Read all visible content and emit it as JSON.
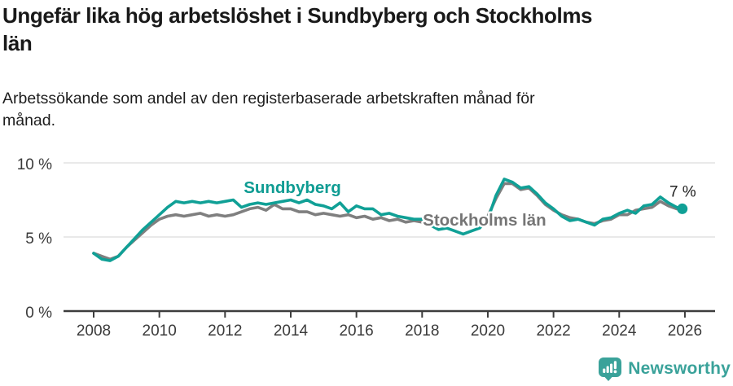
{
  "header": {
    "title": "Ungefär lika hög arbetslöshet i Sundbyberg och Stockholms\nlän",
    "subtitle": "Arbetssökande som andel av den registerbaserade arbetskraften månad för\nmånad."
  },
  "footer": {
    "brand": "Newsworthy",
    "brand_color": "#3aa29a",
    "logo_icon": "speech-bubble-bar-chart-icon"
  },
  "chart_data": {
    "type": "line",
    "title": "Ungefär lika hög arbetslöshet i Sundbyberg och Stockholms län",
    "subtitle": "Arbetssökande som andel av den registerbaserade arbetskraften månad för månad.",
    "xlabel": "",
    "ylabel": "",
    "xlim": [
      2007.1,
      2026.9
    ],
    "ylim": [
      0,
      10.5
    ],
    "grid": "horizontal-only",
    "gridline_color": "#e2e2e2",
    "axis_color": "#3d3d3d",
    "tick_label_color": "#3a3a3a",
    "legend": "inline-series-labels",
    "x_ticks": [
      2008,
      2010,
      2012,
      2014,
      2016,
      2018,
      2020,
      2022,
      2024,
      2026
    ],
    "y_ticks": [
      {
        "value": 0,
        "label": "0 %"
      },
      {
        "value": 5,
        "label": "5 %"
      },
      {
        "value": 10,
        "label": "10 %"
      }
    ],
    "end_label": {
      "text": "7 %",
      "series": "Sundbyberg",
      "color": "#222222"
    },
    "series": [
      {
        "name": "Stockholms län",
        "color": "#7f7f7f",
        "label_color": "#757575",
        "label_at": [
          2019.9,
          5.77
        ],
        "label_anchor": "middle",
        "end_dot": false,
        "points": [
          [
            2008.0,
            3.9
          ],
          [
            2008.25,
            3.7
          ],
          [
            2008.5,
            3.5
          ],
          [
            2008.75,
            3.7
          ],
          [
            2009.0,
            4.3
          ],
          [
            2009.25,
            4.8
          ],
          [
            2009.5,
            5.3
          ],
          [
            2009.75,
            5.8
          ],
          [
            2010.0,
            6.2
          ],
          [
            2010.25,
            6.4
          ],
          [
            2010.5,
            6.5
          ],
          [
            2010.75,
            6.4
          ],
          [
            2011.0,
            6.5
          ],
          [
            2011.25,
            6.6
          ],
          [
            2011.5,
            6.4
          ],
          [
            2011.75,
            6.5
          ],
          [
            2012.0,
            6.4
          ],
          [
            2012.25,
            6.5
          ],
          [
            2012.5,
            6.7
          ],
          [
            2012.75,
            6.9
          ],
          [
            2013.0,
            7.0
          ],
          [
            2013.25,
            6.8
          ],
          [
            2013.5,
            7.2
          ],
          [
            2013.75,
            6.9
          ],
          [
            2014.0,
            6.9
          ],
          [
            2014.25,
            6.7
          ],
          [
            2014.5,
            6.7
          ],
          [
            2014.75,
            6.5
          ],
          [
            2015.0,
            6.6
          ],
          [
            2015.25,
            6.5
          ],
          [
            2015.5,
            6.4
          ],
          [
            2015.75,
            6.5
          ],
          [
            2016.0,
            6.3
          ],
          [
            2016.25,
            6.4
          ],
          [
            2016.5,
            6.2
          ],
          [
            2016.75,
            6.3
          ],
          [
            2017.0,
            6.1
          ],
          [
            2017.25,
            6.2
          ],
          [
            2017.5,
            6.0
          ],
          [
            2017.75,
            6.1
          ],
          [
            2018.0,
            6.0
          ],
          [
            2018.25,
            6.0
          ],
          [
            2018.5,
            5.9
          ],
          [
            2018.75,
            6.0
          ],
          [
            2019.0,
            5.9
          ],
          [
            2019.25,
            5.9
          ],
          [
            2019.5,
            6.0
          ],
          [
            2019.75,
            6.1
          ],
          [
            2020.0,
            6.4
          ],
          [
            2020.25,
            7.6
          ],
          [
            2020.5,
            8.6
          ],
          [
            2020.75,
            8.6
          ],
          [
            2021.0,
            8.2
          ],
          [
            2021.25,
            8.3
          ],
          [
            2021.5,
            7.8
          ],
          [
            2021.75,
            7.2
          ],
          [
            2022.0,
            6.8
          ],
          [
            2022.25,
            6.5
          ],
          [
            2022.5,
            6.3
          ],
          [
            2022.75,
            6.2
          ],
          [
            2023.0,
            6.0
          ],
          [
            2023.25,
            5.9
          ],
          [
            2023.5,
            6.1
          ],
          [
            2023.75,
            6.2
          ],
          [
            2024.0,
            6.5
          ],
          [
            2024.25,
            6.5
          ],
          [
            2024.5,
            6.8
          ],
          [
            2024.75,
            6.9
          ],
          [
            2025.0,
            7.0
          ],
          [
            2025.25,
            7.4
          ],
          [
            2025.5,
            7.1
          ],
          [
            2025.75,
            6.9
          ],
          [
            2025.92,
            6.9
          ]
        ]
      },
      {
        "name": "Sundbyberg",
        "color": "#10a096",
        "label_color": "#0f9c93",
        "label_at": [
          2014.05,
          7.97
        ],
        "label_anchor": "middle",
        "end_dot": true,
        "points": [
          [
            2008.0,
            3.9
          ],
          [
            2008.25,
            3.5
          ],
          [
            2008.5,
            3.4
          ],
          [
            2008.75,
            3.7
          ],
          [
            2009.0,
            4.3
          ],
          [
            2009.25,
            4.9
          ],
          [
            2009.5,
            5.5
          ],
          [
            2009.75,
            6.0
          ],
          [
            2010.0,
            6.5
          ],
          [
            2010.25,
            7.0
          ],
          [
            2010.5,
            7.4
          ],
          [
            2010.75,
            7.3
          ],
          [
            2011.0,
            7.4
          ],
          [
            2011.25,
            7.3
          ],
          [
            2011.5,
            7.4
          ],
          [
            2011.75,
            7.3
          ],
          [
            2012.0,
            7.4
          ],
          [
            2012.25,
            7.5
          ],
          [
            2012.5,
            7.0
          ],
          [
            2012.75,
            7.2
          ],
          [
            2013.0,
            7.3
          ],
          [
            2013.25,
            7.2
          ],
          [
            2013.5,
            7.3
          ],
          [
            2013.75,
            7.4
          ],
          [
            2014.0,
            7.5
          ],
          [
            2014.25,
            7.3
          ],
          [
            2014.5,
            7.5
          ],
          [
            2014.75,
            7.2
          ],
          [
            2015.0,
            7.1
          ],
          [
            2015.25,
            6.9
          ],
          [
            2015.5,
            7.3
          ],
          [
            2015.75,
            6.7
          ],
          [
            2016.0,
            7.1
          ],
          [
            2016.25,
            6.9
          ],
          [
            2016.5,
            6.9
          ],
          [
            2016.75,
            6.5
          ],
          [
            2017.0,
            6.6
          ],
          [
            2017.25,
            6.4
          ],
          [
            2017.5,
            6.3
          ],
          [
            2017.75,
            6.2
          ],
          [
            2018.0,
            6.2
          ],
          [
            2018.25,
            5.8
          ],
          [
            2018.5,
            5.5
          ],
          [
            2018.75,
            5.6
          ],
          [
            2019.0,
            5.4
          ],
          [
            2019.25,
            5.2
          ],
          [
            2019.5,
            5.4
          ],
          [
            2019.75,
            5.6
          ],
          [
            2020.0,
            6.2
          ],
          [
            2020.25,
            7.8
          ],
          [
            2020.5,
            8.9
          ],
          [
            2020.75,
            8.7
          ],
          [
            2021.0,
            8.3
          ],
          [
            2021.25,
            8.4
          ],
          [
            2021.5,
            7.9
          ],
          [
            2021.75,
            7.3
          ],
          [
            2022.0,
            6.9
          ],
          [
            2022.25,
            6.4
          ],
          [
            2022.5,
            6.1
          ],
          [
            2022.75,
            6.2
          ],
          [
            2023.0,
            6.0
          ],
          [
            2023.25,
            5.8
          ],
          [
            2023.5,
            6.2
          ],
          [
            2023.75,
            6.3
          ],
          [
            2024.0,
            6.6
          ],
          [
            2024.25,
            6.8
          ],
          [
            2024.5,
            6.6
          ],
          [
            2024.75,
            7.1
          ],
          [
            2025.0,
            7.2
          ],
          [
            2025.25,
            7.7
          ],
          [
            2025.5,
            7.3
          ],
          [
            2025.75,
            7.0
          ],
          [
            2025.92,
            6.9
          ]
        ]
      }
    ]
  }
}
